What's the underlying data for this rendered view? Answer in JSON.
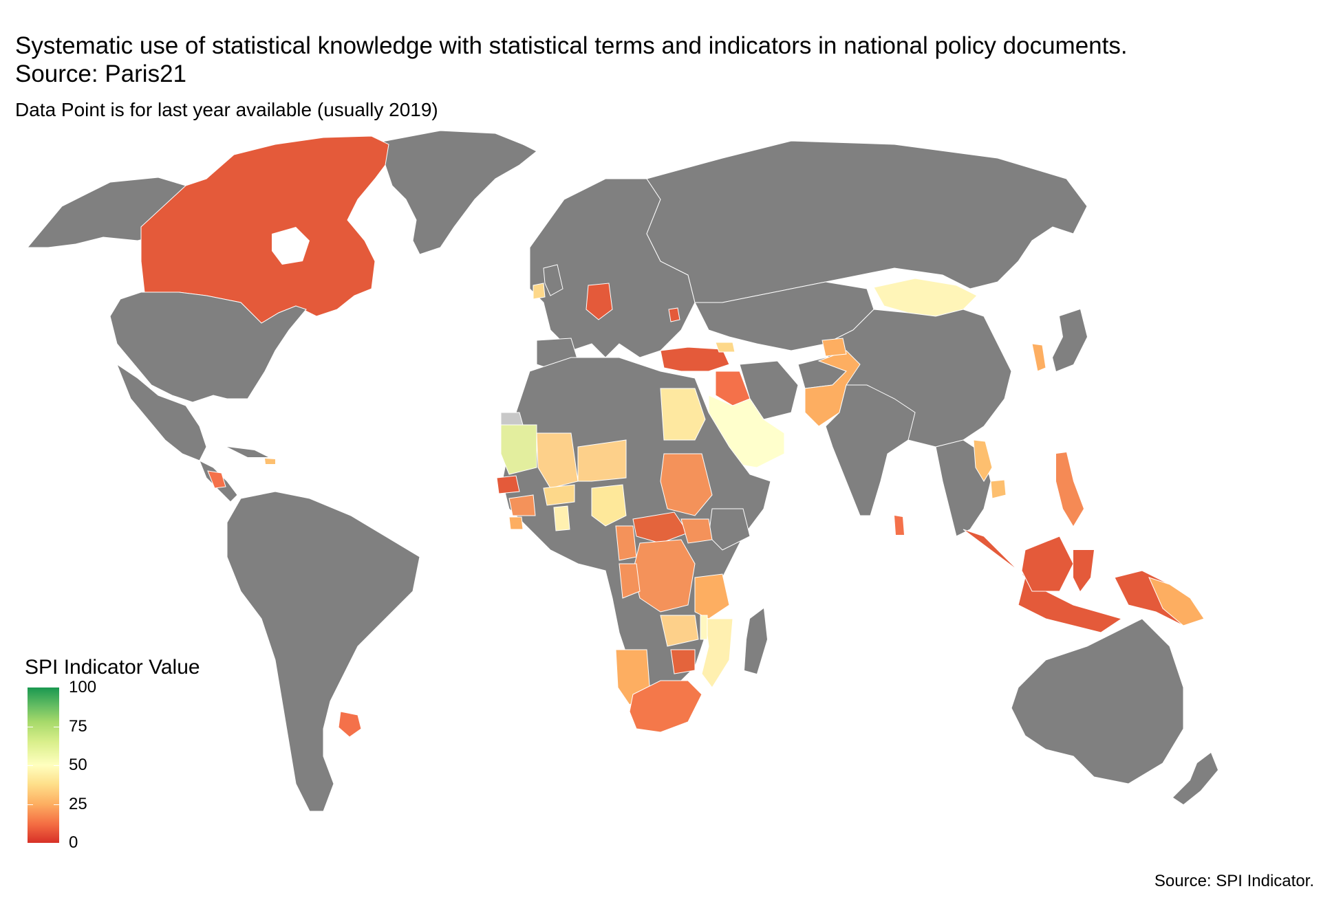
{
  "title": "Systematic use of statistical knowledge with statistical terms and indicators in national policy documents. Source: Paris21",
  "subtitle": "Data Point is for last year available (usually 2019)",
  "caption": "Source: SPI Indicator.",
  "legend": {
    "title": "SPI Indicator Value",
    "ticks": [
      "100",
      "75",
      "50",
      "25",
      "0"
    ],
    "scale": {
      "min": 0,
      "max": 100,
      "low_color": "#d73027",
      "mid_color": "#ffffbf",
      "high_color": "#1a9850"
    }
  },
  "colors": {
    "no_data": "#808080",
    "missing": "#c8c8c8",
    "border": "#ffffff"
  }
}
